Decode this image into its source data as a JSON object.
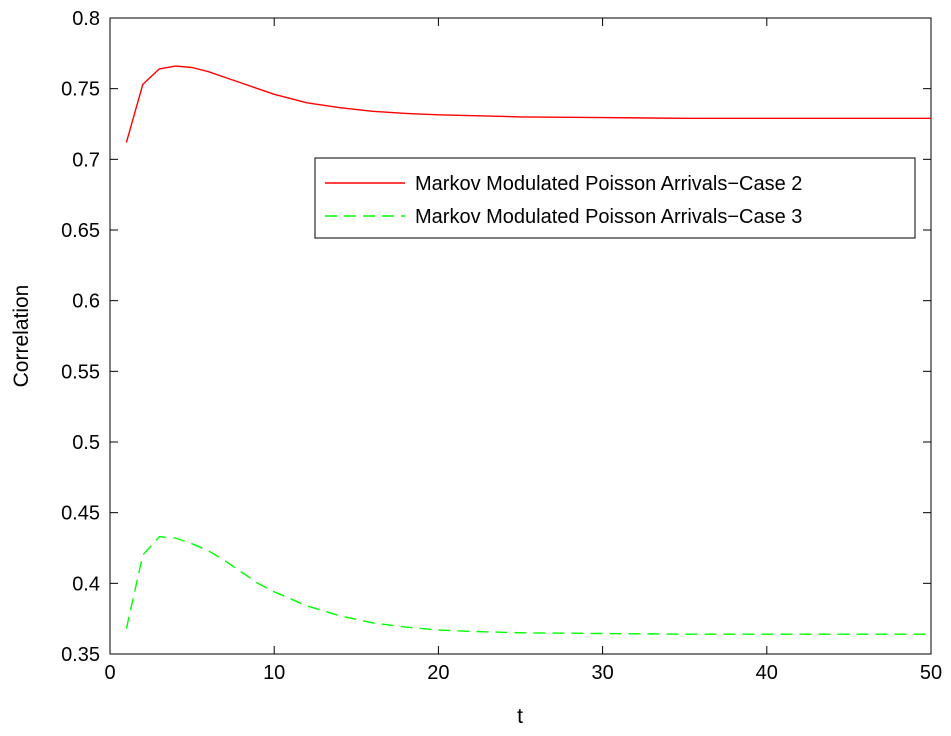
{
  "chart_data": {
    "type": "line",
    "title": "",
    "xlabel": "t",
    "ylabel": "Correlation",
    "xlim": [
      0,
      50
    ],
    "ylim": [
      0.35,
      0.8
    ],
    "grid": false,
    "legend_position": "upper-right",
    "xticks": [
      0,
      10,
      20,
      30,
      40,
      50
    ],
    "yticks": [
      0.35,
      0.4,
      0.45,
      0.5,
      0.55,
      0.6,
      0.65,
      0.7,
      0.75,
      0.8
    ],
    "series": [
      {
        "name": "Markov Modulated Poisson Arrivals−Case 2",
        "color": "#ff0000",
        "style": "solid",
        "x": [
          1,
          2,
          3,
          4,
          5,
          6,
          7,
          8,
          9,
          10,
          12,
          14,
          16,
          18,
          20,
          25,
          30,
          35,
          40,
          45,
          50
        ],
        "y": [
          0.712,
          0.753,
          0.764,
          0.766,
          0.765,
          0.762,
          0.758,
          0.754,
          0.75,
          0.746,
          0.74,
          0.7365,
          0.734,
          0.7325,
          0.7315,
          0.73,
          0.7295,
          0.729,
          0.729,
          0.729,
          0.729
        ]
      },
      {
        "name": "Markov Modulated Poisson Arrivals−Case 3",
        "color": "#00ff00",
        "style": "dashed",
        "x": [
          1,
          2,
          3,
          4,
          5,
          6,
          7,
          8,
          9,
          10,
          12,
          14,
          16,
          18,
          20,
          22,
          25,
          30,
          35,
          40,
          45,
          50
        ],
        "y": [
          0.368,
          0.42,
          0.433,
          0.432,
          0.428,
          0.423,
          0.416,
          0.408,
          0.4,
          0.394,
          0.384,
          0.377,
          0.372,
          0.369,
          0.367,
          0.366,
          0.365,
          0.3645,
          0.364,
          0.364,
          0.364,
          0.364
        ]
      }
    ]
  }
}
